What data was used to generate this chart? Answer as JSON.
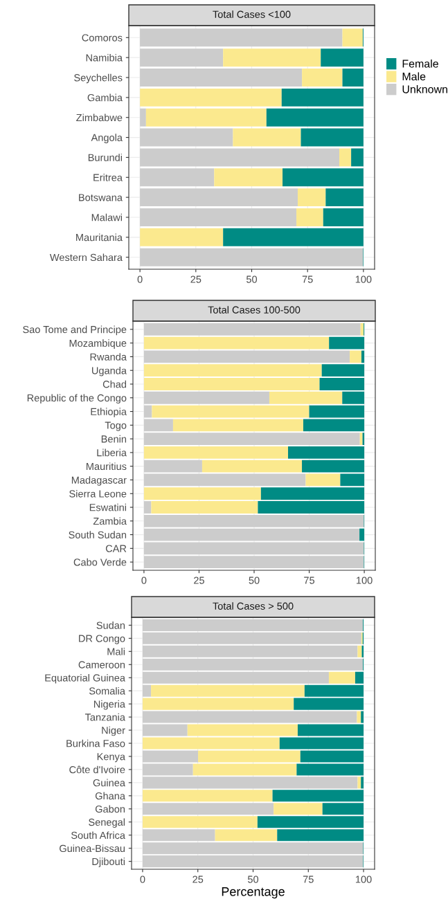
{
  "chart_data": [
    {
      "type": "bar",
      "orientation": "horizontal",
      "stacked": true,
      "title": "Total Cases <100",
      "categories": [
        "Comoros",
        "Namibia",
        "Seychelles",
        "Gambia",
        "Zimbabwe",
        "Angola",
        "Burundi",
        "Eritrea",
        "Botswana",
        "Malawi",
        "Mauritania",
        "Western Sahara"
      ],
      "series": [
        {
          "name": "Unknown",
          "color": "#cccccc",
          "values": [
            90.6,
            37.2,
            72.5,
            0,
            2.7,
            41.6,
            89.2,
            33.2,
            70.6,
            70.0,
            0,
            99.8
          ]
        },
        {
          "name": "Male",
          "color": "#fbe98e",
          "values": [
            9.1,
            43.7,
            18.1,
            63.4,
            53.9,
            30.4,
            5.3,
            30.6,
            12.5,
            12.0,
            37.2,
            0
          ]
        },
        {
          "name": "Female",
          "color": "#008b84",
          "values": [
            0.3,
            19.1,
            9.4,
            36.6,
            43.4,
            28.0,
            5.5,
            36.2,
            16.9,
            18.0,
            62.8,
            0.2
          ]
        }
      ],
      "xlim": [
        -5,
        105
      ],
      "xticks": [
        0,
        25,
        50,
        75,
        100
      ],
      "grid": true,
      "legend": "right"
    },
    {
      "type": "bar",
      "orientation": "horizontal",
      "stacked": true,
      "title": "Total Cases 100-500",
      "categories": [
        "Sao Tome and Principe",
        "Mozambique",
        "Rwanda",
        "Uganda",
        "Chad",
        "Republic of the Congo",
        "Ethiopia",
        "Togo",
        "Benin",
        "Liberia",
        "Mauritius",
        "Madagascar",
        "Sierra Leone",
        "Eswatini",
        "Zambia",
        "South Sudan",
        "CAR",
        "Cabo Verde"
      ],
      "series": [
        {
          "color": "#cccccc",
          "values": [
            98.3,
            0,
            93.4,
            0,
            0,
            56.9,
            3.6,
            13.2,
            98.0,
            0,
            26.4,
            73.4,
            0,
            3.3,
            99.8,
            97.8,
            99.8,
            99.8
          ]
        },
        {
          "color": "#fbe98e",
          "values": [
            1.4,
            84.0,
            5.3,
            80.7,
            79.7,
            33.1,
            71.4,
            59.1,
            1.2,
            65.4,
            45.3,
            15.7,
            53.1,
            48.4,
            0,
            0,
            0,
            0
          ]
        },
        {
          "color": "#008b84",
          "values": [
            0.3,
            16.0,
            1.3,
            19.3,
            20.3,
            10.0,
            25.0,
            27.7,
            0.8,
            34.6,
            28.3,
            10.9,
            46.9,
            48.3,
            0.2,
            2.2,
            0.2,
            0.2
          ]
        }
      ],
      "xlim": [
        -5,
        105
      ],
      "xticks": [
        0,
        25,
        50,
        75,
        100
      ],
      "grid": true
    },
    {
      "type": "bar",
      "orientation": "horizontal",
      "stacked": true,
      "title": "Total Cases > 500",
      "xlabel": "Percentage",
      "categories": [
        "Sudan",
        "DR Congo",
        "Mali",
        "Cameroon",
        "Equatorial Guinea",
        "Somalia",
        "Nigeria",
        "Tanzania",
        "Niger",
        "Burkina Faso",
        "Kenya",
        "Côte d'Ivoire",
        "Guinea",
        "Ghana",
        "Gabon",
        "Senegal",
        "South Africa",
        "Guinea-Bissau",
        "Djibouti"
      ],
      "series": [
        {
          "color": "#cccccc",
          "values": [
            99.7,
            99.0,
            97.3,
            99.7,
            84.3,
            3.8,
            0,
            97.0,
            20.3,
            0,
            25.1,
            22.8,
            97.3,
            0,
            59.3,
            0,
            32.8,
            99.8,
            99.8
          ]
        },
        {
          "color": "#fbe98e",
          "values": [
            0,
            0.6,
            1.9,
            0,
            11.9,
            69.5,
            68.4,
            1.8,
            49.9,
            62.0,
            46.3,
            46.9,
            1.5,
            58.8,
            22.1,
            52.0,
            28.1,
            0,
            0
          ]
        },
        {
          "color": "#008b84",
          "values": [
            0.3,
            0.4,
            0.8,
            0.3,
            3.8,
            26.7,
            31.6,
            1.2,
            29.8,
            38.0,
            28.6,
            30.3,
            1.2,
            41.2,
            18.6,
            48.0,
            39.1,
            0.2,
            0.2
          ]
        }
      ],
      "xlim": [
        -5,
        105
      ],
      "xticks": [
        0,
        25,
        50,
        75,
        100
      ],
      "grid": true
    }
  ]
}
